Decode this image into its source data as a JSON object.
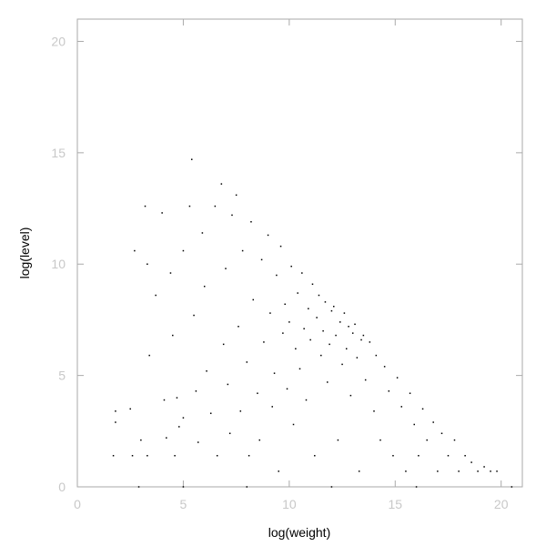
{
  "chart_data": {
    "type": "scatter",
    "title": "",
    "xlabel": "log(weight)",
    "ylabel": "log(level)",
    "xlim": [
      0,
      21
    ],
    "ylim": [
      0,
      21
    ],
    "xticks": [
      0,
      5,
      10,
      15,
      20
    ],
    "yticks": [
      0,
      5,
      10,
      15,
      20
    ],
    "grid": false,
    "legend": "none",
    "colors": {
      "points": "#000000",
      "axis": "#aaaaaa",
      "tick_labels": "#c8c8c8"
    },
    "points": [
      [
        1.7,
        1.4
      ],
      [
        1.8,
        3.4
      ],
      [
        1.8,
        2.9
      ],
      [
        2.5,
        3.5
      ],
      [
        2.6,
        1.4
      ],
      [
        2.7,
        10.6
      ],
      [
        3.0,
        2.1
      ],
      [
        3.2,
        12.6
      ],
      [
        3.3,
        1.4
      ],
      [
        3.3,
        10.0
      ],
      [
        3.4,
        5.9
      ],
      [
        3.7,
        8.6
      ],
      [
        4.0,
        12.3
      ],
      [
        4.1,
        3.9
      ],
      [
        4.2,
        2.2
      ],
      [
        4.4,
        9.6
      ],
      [
        4.5,
        6.8
      ],
      [
        4.6,
        1.4
      ],
      [
        4.7,
        4.0
      ],
      [
        4.8,
        2.7
      ],
      [
        5.0,
        10.6
      ],
      [
        5.0,
        3.1
      ],
      [
        5.3,
        12.6
      ],
      [
        5.4,
        14.7
      ],
      [
        5.5,
        7.7
      ],
      [
        5.6,
        4.3
      ],
      [
        5.7,
        2.0
      ],
      [
        5.9,
        11.4
      ],
      [
        6.0,
        9.0
      ],
      [
        6.1,
        5.2
      ],
      [
        6.3,
        3.3
      ],
      [
        6.5,
        12.6
      ],
      [
        6.6,
        1.4
      ],
      [
        6.8,
        13.6
      ],
      [
        6.9,
        6.4
      ],
      [
        7.0,
        9.8
      ],
      [
        7.1,
        4.6
      ],
      [
        7.2,
        2.4
      ],
      [
        7.3,
        12.2
      ],
      [
        7.5,
        13.1
      ],
      [
        7.6,
        7.2
      ],
      [
        7.7,
        3.4
      ],
      [
        7.8,
        10.6
      ],
      [
        8.0,
        5.6
      ],
      [
        8.1,
        1.4
      ],
      [
        8.2,
        11.9
      ],
      [
        8.3,
        8.4
      ],
      [
        8.5,
        4.2
      ],
      [
        8.6,
        2.1
      ],
      [
        8.7,
        10.2
      ],
      [
        8.8,
        6.5
      ],
      [
        9.0,
        11.3
      ],
      [
        9.1,
        7.8
      ],
      [
        9.2,
        3.6
      ],
      [
        9.3,
        5.1
      ],
      [
        9.4,
        9.5
      ],
      [
        9.5,
        0.7
      ],
      [
        9.6,
        10.8
      ],
      [
        9.7,
        6.9
      ],
      [
        9.8,
        8.2
      ],
      [
        9.9,
        4.4
      ],
      [
        10.0,
        7.4
      ],
      [
        10.1,
        9.9
      ],
      [
        10.2,
        2.8
      ],
      [
        10.3,
        6.2
      ],
      [
        10.4,
        8.7
      ],
      [
        10.5,
        5.3
      ],
      [
        10.6,
        9.6
      ],
      [
        10.7,
        7.1
      ],
      [
        10.8,
        3.9
      ],
      [
        10.9,
        8.0
      ],
      [
        11.0,
        6.6
      ],
      [
        11.1,
        9.1
      ],
      [
        11.2,
        1.4
      ],
      [
        11.3,
        7.6
      ],
      [
        11.4,
        8.6
      ],
      [
        11.5,
        5.9
      ],
      [
        11.6,
        7.0
      ],
      [
        11.7,
        8.3
      ],
      [
        11.8,
        4.7
      ],
      [
        11.9,
        6.4
      ],
      [
        12.0,
        7.9
      ],
      [
        12.1,
        8.1
      ],
      [
        12.2,
        6.8
      ],
      [
        12.3,
        2.1
      ],
      [
        12.4,
        7.4
      ],
      [
        12.5,
        5.5
      ],
      [
        12.6,
        7.8
      ],
      [
        12.7,
        6.2
      ],
      [
        12.8,
        7.2
      ],
      [
        12.9,
        4.1
      ],
      [
        13.0,
        6.9
      ],
      [
        13.1,
        7.3
      ],
      [
        13.2,
        5.8
      ],
      [
        13.3,
        0.7
      ],
      [
        13.4,
        6.6
      ],
      [
        13.5,
        6.8
      ],
      [
        13.6,
        4.8
      ],
      [
        13.8,
        6.5
      ],
      [
        14.0,
        3.4
      ],
      [
        14.1,
        5.9
      ],
      [
        14.3,
        2.1
      ],
      [
        14.5,
        5.4
      ],
      [
        14.7,
        4.3
      ],
      [
        14.9,
        1.4
      ],
      [
        15.1,
        4.9
      ],
      [
        15.3,
        3.6
      ],
      [
        15.5,
        0.7
      ],
      [
        15.7,
        4.2
      ],
      [
        15.9,
        2.8
      ],
      [
        16.1,
        1.4
      ],
      [
        16.3,
        3.5
      ],
      [
        16.5,
        2.1
      ],
      [
        16.8,
        2.9
      ],
      [
        17.0,
        0.7
      ],
      [
        17.2,
        2.4
      ],
      [
        17.5,
        1.4
      ],
      [
        17.8,
        2.1
      ],
      [
        18.0,
        0.7
      ],
      [
        18.3,
        1.4
      ],
      [
        18.6,
        1.1
      ],
      [
        18.9,
        0.7
      ],
      [
        19.2,
        0.9
      ],
      [
        19.5,
        0.7
      ],
      [
        19.8,
        0.7
      ],
      [
        2.9,
        0.0
      ],
      [
        5.0,
        0.0
      ],
      [
        8.0,
        0.0
      ],
      [
        12.0,
        0.0
      ],
      [
        16.0,
        0.0
      ],
      [
        20.5,
        0.0
      ]
    ]
  }
}
